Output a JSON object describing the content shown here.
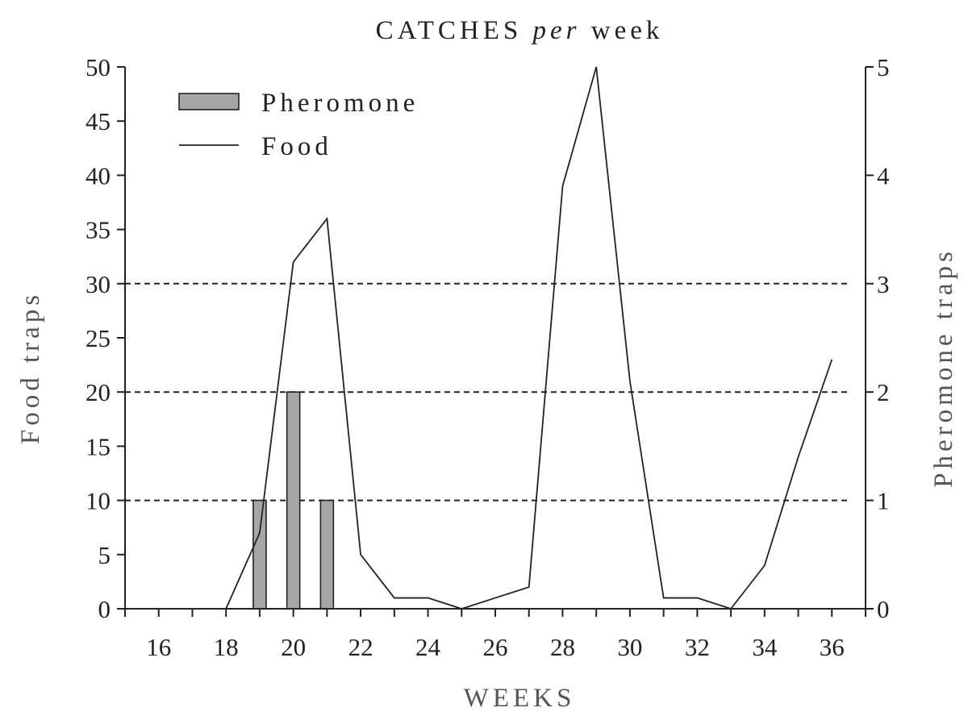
{
  "chart_data": {
    "type": "bar+line",
    "title_prefix": "CATCHES",
    "title_italic": "per",
    "title_suffix": "week",
    "xlabel": "WEEKS",
    "ylabel_left": "Food traps",
    "ylabel_right": "Pheromone traps",
    "xlim": [
      15,
      37
    ],
    "ylim_left": [
      0,
      50
    ],
    "ylim_right": [
      0,
      5
    ],
    "x_ticks": [
      16,
      18,
      20,
      22,
      24,
      26,
      28,
      30,
      32,
      34,
      36
    ],
    "y_ticks_left": [
      0,
      5,
      10,
      15,
      20,
      25,
      30,
      35,
      40,
      45,
      50
    ],
    "y_ticks_right": [
      0,
      1,
      2,
      3,
      4,
      5
    ],
    "reference_lines_right": [
      1,
      2,
      3
    ],
    "legend_position": "top-left",
    "series": [
      {
        "name": "Pheromone",
        "kind": "bar",
        "axis": "right",
        "color": "#a6a6a6",
        "x": [
          19,
          20,
          21
        ],
        "values": [
          1,
          2,
          1
        ]
      },
      {
        "name": "Food",
        "kind": "line",
        "axis": "left",
        "color": "#222222",
        "x": [
          18,
          19,
          20,
          21,
          22,
          23,
          24,
          25,
          26,
          27,
          28,
          29,
          30,
          31,
          32,
          33,
          34,
          35,
          36
        ],
        "values": [
          0,
          7,
          32,
          36,
          5,
          1,
          1,
          0,
          1,
          2,
          39,
          50,
          21,
          1,
          1,
          0,
          4,
          14,
          23
        ]
      }
    ]
  }
}
